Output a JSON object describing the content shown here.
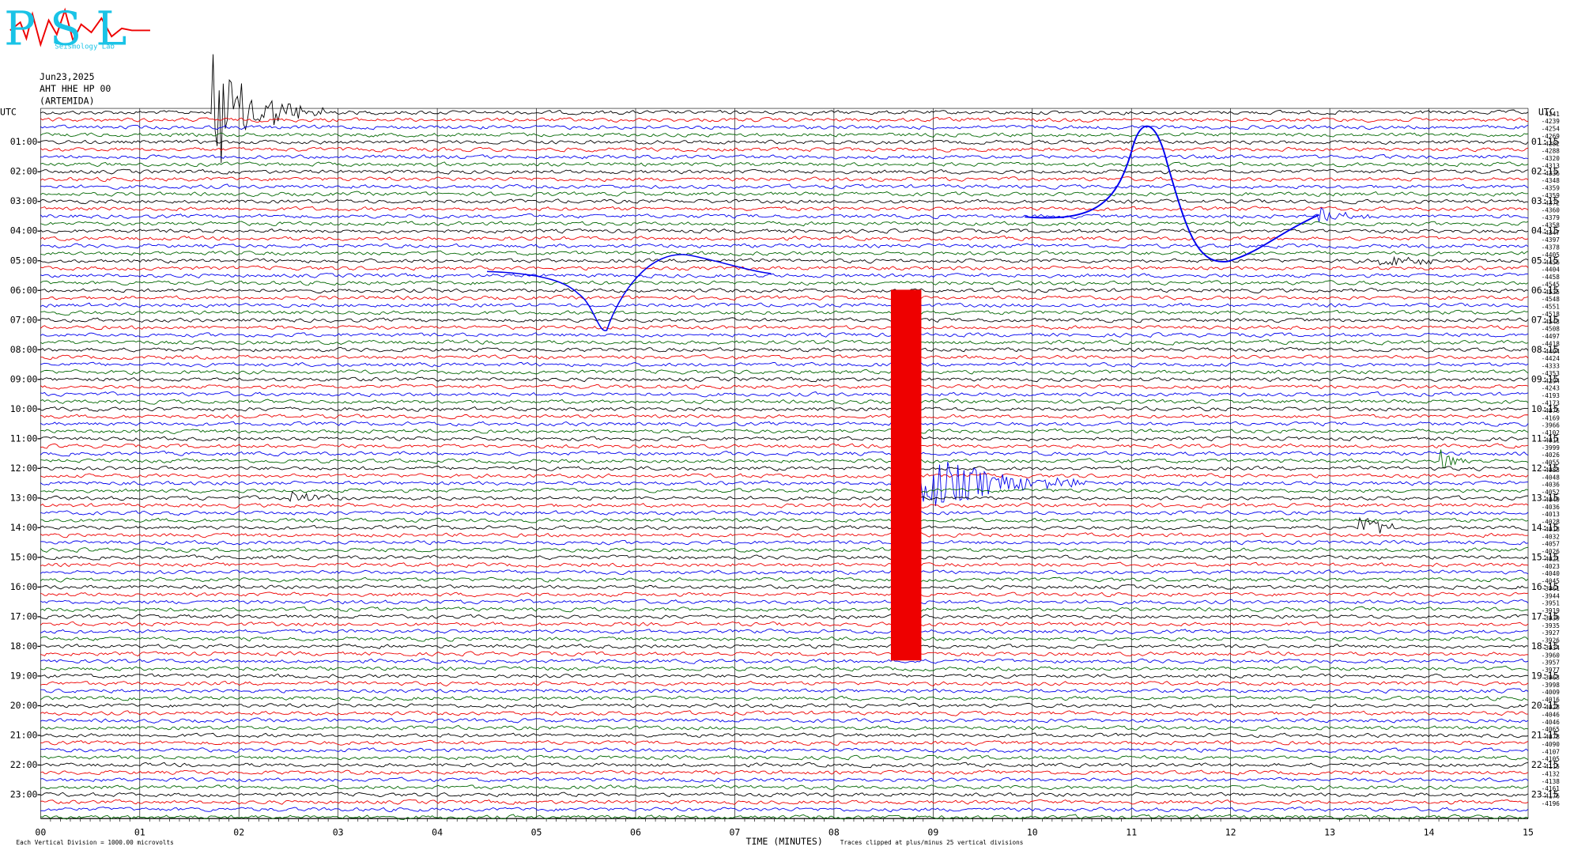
{
  "header": {
    "logo": "PSL",
    "logo_subtitle": "Seismology Lab",
    "date": "Jun23,2025",
    "station": "AHT HHE HP 00",
    "location": "(ARTEMIDA)"
  },
  "left_title": "UTC",
  "right_title": "UTC",
  "left_labels": [
    "01:00",
    "02:00",
    "03:00",
    "04:00",
    "05:00",
    "06:00",
    "07:00",
    "08:00",
    "09:00",
    "10:00",
    "11:00",
    "12:00",
    "13:00",
    "14:00",
    "15:00",
    "16:00",
    "17:00",
    "18:00",
    "19:00",
    "20:00",
    "21:00",
    "22:00",
    "23:00"
  ],
  "right_labels": [
    "01:15",
    "02:15",
    "03:15",
    "04:15",
    "05:15",
    "06:15",
    "07:15",
    "08:15",
    "09:15",
    "10:15",
    "11:15",
    "12:15",
    "13:15",
    "14:15",
    "15:15",
    "16:15",
    "17:15",
    "18:15",
    "19:15",
    "20:15",
    "21:15",
    "22:15",
    "23:15"
  ],
  "offsets": [
    -4241,
    -4239,
    -4254,
    -4269,
    -4282,
    -4288,
    -4320,
    -4313,
    -4336,
    -4348,
    -4359,
    -4359,
    -4372,
    -4360,
    -4379,
    -4358,
    -4347,
    -4397,
    -4378,
    -4405,
    -4456,
    -4404,
    -4458,
    -4545,
    -4535,
    -4548,
    -4551,
    -4518,
    -4543,
    -4508,
    -4497,
    -4418,
    -4404,
    -4424,
    -4333,
    -4353,
    -4294,
    -4243,
    -4193,
    -4173,
    -4076,
    -4169,
    -3966,
    -4102,
    -4011,
    -3999,
    -4026,
    -4055,
    -4083,
    -4048,
    -4036,
    -4052,
    -4049,
    -4036,
    -4013,
    -4028,
    -4018,
    -4032,
    -4057,
    -4026,
    -4021,
    -4023,
    -4040,
    -4045,
    -3961,
    -3944,
    -3951,
    -3919,
    -3939,
    -3935,
    -3927,
    -3926,
    -3934,
    -3960,
    -3957,
    -3977,
    -3963,
    -3998,
    -4009,
    -4016,
    -4028,
    -4046,
    -4046,
    -4065,
    -4078,
    -4090,
    -4107,
    -4105,
    -4115,
    -4132,
    -4138,
    -4161,
    -4176,
    -4196
  ],
  "x_labels": [
    "00",
    "01",
    "02",
    "03",
    "04",
    "05",
    "06",
    "07",
    "08",
    "09",
    "10",
    "11",
    "12",
    "13",
    "14",
    "15"
  ],
  "x_title": "TIME (MINUTES)",
  "footer_left": "Each Vertical Division = 1000.00 microvolts",
  "footer_right": "Traces clipped at plus/minus 25 vertical divisions"
}
